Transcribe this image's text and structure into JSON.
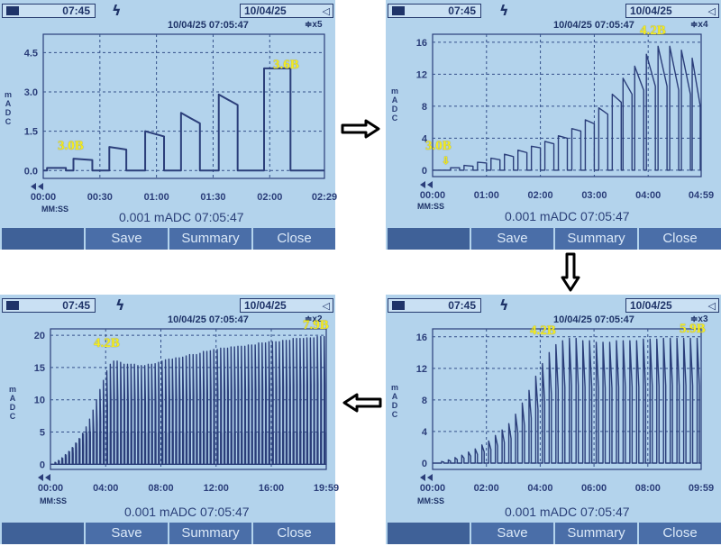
{
  "colors": {
    "screen": "#b3d3ec",
    "trace": "#2b3e7a",
    "grid": "#34508a",
    "annotation": "#f3ec22",
    "softkey": "#4a6ea8"
  },
  "panels": [
    {
      "id": "p1",
      "clock": "07:45",
      "date_box": "10/04/25",
      "stamp": "10/04/25  07:05:47",
      "zoom": "≑x5",
      "ylabel": "mADC",
      "readout": "0.001 mADC 07:05:47",
      "mmss": "MM:SS",
      "softkeys": [
        "",
        "Save",
        "Summary",
        "Close"
      ],
      "annotations": [
        "3.0B",
        "3.6B"
      ],
      "chart_data": {
        "type": "line",
        "ylabel": "mADC",
        "xlabel": "MM:SS",
        "ylim": [
          -0.3,
          5.2
        ],
        "yticks": [
          "0.0",
          "1.5",
          "3.0",
          "4.5"
        ],
        "ytick_values": [
          0,
          1.5,
          3,
          4.5
        ],
        "xticks": [
          "00:00",
          "00:30",
          "01:00",
          "01:30",
          "02:00",
          "02:29"
        ],
        "xtick_values": [
          0,
          30,
          60,
          90,
          120,
          149
        ],
        "xlim": [
          0,
          149
        ],
        "pulses": [
          {
            "start": 2,
            "end": 12,
            "peak": 0.1,
            "settle": 0.1
          },
          {
            "start": 16,
            "end": 26,
            "peak": 0.45,
            "settle": 0.4
          },
          {
            "start": 35,
            "end": 44,
            "peak": 0.9,
            "settle": 0.8
          },
          {
            "start": 54,
            "end": 64,
            "peak": 1.5,
            "settle": 1.3
          },
          {
            "start": 73,
            "end": 83,
            "peak": 2.2,
            "settle": 1.8
          },
          {
            "start": 93,
            "end": 103,
            "peak": 2.9,
            "settle": 2.5
          },
          {
            "start": 117,
            "end": 131,
            "peak": 3.9,
            "settle": 3.9
          }
        ],
        "grid": true
      }
    },
    {
      "id": "p2",
      "clock": "07:45",
      "date_box": "10/04/25",
      "stamp": "10/04/25  07:05:47",
      "zoom": "≑x4",
      "ylabel": "mADC",
      "readout": "0.001 mADC 07:05:47",
      "mmss": "MM:SS",
      "softkeys": [
        "",
        "Save",
        "Summary",
        "Close"
      ],
      "annotations": [
        "3.0B",
        "4.2B"
      ],
      "chart_data": {
        "type": "line",
        "ylabel": "mADC",
        "xlabel": "MM:SS",
        "ylim": [
          -0.8,
          17
        ],
        "yticks": [
          "0",
          "4",
          "8",
          "12",
          "16"
        ],
        "ytick_values": [
          0,
          4,
          8,
          12,
          16
        ],
        "xticks": [
          "00:00",
          "01:00",
          "02:00",
          "03:00",
          "04:00",
          "04:59"
        ],
        "xtick_values": [
          0,
          60,
          120,
          180,
          240,
          299
        ],
        "xlim": [
          0,
          299
        ],
        "pulses": [
          {
            "start": 20,
            "end": 30,
            "peak": 0.3,
            "settle": 0.3
          },
          {
            "start": 35,
            "end": 45,
            "peak": 0.6,
            "settle": 0.5
          },
          {
            "start": 50,
            "end": 60,
            "peak": 1.0,
            "settle": 0.9
          },
          {
            "start": 65,
            "end": 75,
            "peak": 1.5,
            "settle": 1.3
          },
          {
            "start": 80,
            "end": 90,
            "peak": 2.0,
            "settle": 1.7
          },
          {
            "start": 95,
            "end": 105,
            "peak": 2.5,
            "settle": 2.2
          },
          {
            "start": 110,
            "end": 120,
            "peak": 3.0,
            "settle": 2.8
          },
          {
            "start": 125,
            "end": 135,
            "peak": 3.6,
            "settle": 3.3
          },
          {
            "start": 140,
            "end": 150,
            "peak": 4.3,
            "settle": 4.0
          },
          {
            "start": 155,
            "end": 165,
            "peak": 5.2,
            "settle": 4.9
          },
          {
            "start": 170,
            "end": 180,
            "peak": 6.3,
            "settle": 5.8
          },
          {
            "start": 185,
            "end": 195,
            "peak": 7.8,
            "settle": 7.0
          },
          {
            "start": 200,
            "end": 210,
            "peak": 9.5,
            "settle": 8.5
          },
          {
            "start": 212,
            "end": 222,
            "peak": 11.5,
            "settle": 9.5
          },
          {
            "start": 225,
            "end": 235,
            "peak": 13.0,
            "settle": 10.0
          },
          {
            "start": 238,
            "end": 248,
            "peak": 14.5,
            "settle": 10.5
          },
          {
            "start": 251,
            "end": 261,
            "peak": 15.5,
            "settle": 10.5
          },
          {
            "start": 264,
            "end": 274,
            "peak": 15.5,
            "settle": 10.0
          },
          {
            "start": 277,
            "end": 287,
            "peak": 15.0,
            "settle": 9.5
          },
          {
            "start": 289,
            "end": 298,
            "peak": 14.0,
            "settle": 8.0
          }
        ],
        "grid": true
      }
    },
    {
      "id": "p3",
      "clock": "07:45",
      "date_box": "10/04/25",
      "stamp": "10/04/25  07:05:47",
      "zoom": "≑x3",
      "ylabel": "mADC",
      "readout": "0.001 mADC 07:05:47",
      "mmss": "MM:SS",
      "softkeys": [
        "",
        "Save",
        "Summary",
        "Close"
      ],
      "annotations": [
        "4.2B",
        "5.9B"
      ],
      "chart_data": {
        "type": "line",
        "ylabel": "mADC",
        "xlabel": "MM:SS",
        "ylim": [
          -0.8,
          17
        ],
        "yticks": [
          "0",
          "4",
          "8",
          "12",
          "16"
        ],
        "ytick_values": [
          0,
          4,
          8,
          12,
          16
        ],
        "xticks": [
          "00:00",
          "02:00",
          "04:00",
          "06:00",
          "08:00",
          "09:59"
        ],
        "xtick_values": [
          0,
          120,
          240,
          360,
          480,
          599
        ],
        "xlim": [
          0,
          599
        ],
        "pulse_start": 20,
        "pulse_period": 15,
        "pulse_width": 5,
        "pulse_peaks": [
          0.2,
          0.4,
          0.7,
          1.0,
          1.4,
          1.8,
          2.3,
          2.8,
          3.5,
          4.2,
          5.0,
          6.2,
          7.6,
          9.2,
          11.0,
          12.6,
          14.0,
          15.0,
          15.5,
          15.8,
          15.8,
          15.5,
          15.5,
          15.3,
          15.3,
          15.3,
          15.5,
          15.5,
          15.5,
          15.5,
          15.7,
          15.7,
          15.7,
          15.8,
          15.8,
          15.8,
          15.8,
          15.8,
          15.8
        ],
        "grid": true
      }
    },
    {
      "id": "p4",
      "clock": "07:45",
      "date_box": "10/04/25",
      "stamp": "10/04/25  07:05:47",
      "zoom": "≑x2",
      "ylabel": "mADC",
      "readout": "0.001 mADC 07:05:47",
      "mmss": "MM:SS",
      "softkeys": [
        "",
        "Save",
        "Summary",
        "Close"
      ],
      "annotations": [
        "4.2B",
        "7.9B"
      ],
      "chart_data": {
        "type": "bar",
        "ylabel": "mADC",
        "xlabel": "MM:SS",
        "ylim": [
          -0.8,
          21
        ],
        "yticks": [
          "0",
          "5",
          "10",
          "15",
          "20"
        ],
        "ytick_values": [
          0,
          5,
          10,
          15,
          20
        ],
        "xticks": [
          "00:00",
          "04:00",
          "08:00",
          "12:00",
          "16:00",
          "19:59"
        ],
        "xtick_values": [
          0,
          240,
          480,
          720,
          960,
          1199
        ],
        "xlim": [
          0,
          1199
        ],
        "pulse_start": 20,
        "pulse_period": 15,
        "pulse_peaks": [
          0.3,
          0.6,
          1.0,
          1.5,
          2.0,
          2.6,
          3.3,
          4.0,
          4.8,
          5.8,
          7.0,
          8.4,
          10.0,
          11.6,
          13.0,
          14.5,
          15.5,
          16.0,
          16.0,
          15.8,
          15.5,
          15.5,
          15.5,
          15.5,
          15.3,
          15.3,
          15.3,
          15.5,
          15.5,
          15.6,
          15.8,
          16.0,
          16.2,
          16.3,
          16.3,
          16.5,
          16.5,
          16.6,
          16.8,
          17.0,
          17.0,
          17.0,
          17.2,
          17.5,
          17.5,
          17.6,
          17.8,
          17.8,
          18.0,
          18.0,
          18.0,
          18.2,
          18.2,
          18.3,
          18.3,
          18.3,
          18.5,
          18.5,
          18.5,
          18.8,
          18.8,
          18.8,
          19.0,
          19.0,
          19.0,
          19.0,
          19.2,
          19.2,
          19.2,
          19.5,
          19.5,
          19.5,
          19.5,
          19.6,
          19.6,
          19.6,
          19.8,
          19.8,
          19.8
        ],
        "trough": 5,
        "grid": true
      }
    }
  ]
}
